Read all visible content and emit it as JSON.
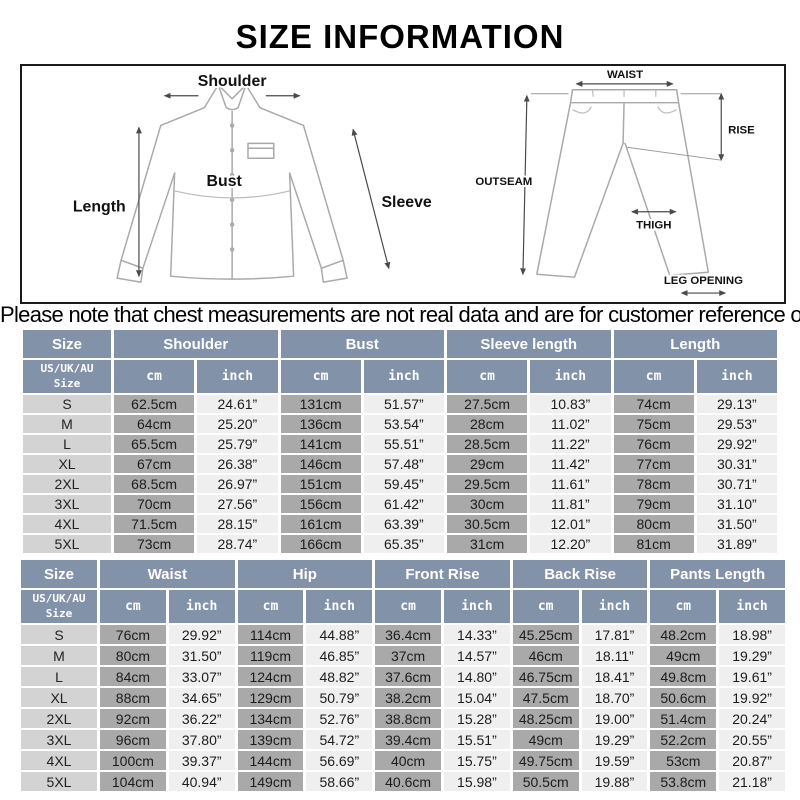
{
  "title": "SIZE INFORMATION",
  "notice": "Please note that chest measurements are not real data and are for customer reference only.",
  "diagram": {
    "shirt": {
      "shoulder": "Shoulder",
      "length": "Length",
      "bust": "Bust",
      "sleeve": "Sleeve"
    },
    "pants": {
      "waist": "WAIST",
      "rise": "RISE",
      "outseam": "OUTSEAM",
      "thigh": "THIGH",
      "leg_opening": "LEG OPENING"
    }
  },
  "colors": {
    "header_bg": "#8292a9",
    "size_col_bg": "#d3d3d3",
    "cm_col_bg": "#a9a9a9",
    "inch_col_bg": "#efefef"
  },
  "tables": [
    {
      "name": "tops",
      "size_header": "Size",
      "size_subheader": "US/UK/AU\nSize",
      "unit_labels": [
        "cm",
        "inch"
      ],
      "groups": [
        "Shoulder",
        "Bust",
        "Sleeve length",
        "Length"
      ],
      "rows": [
        {
          "size": "S",
          "values": [
            "62.5cm",
            "24.61”",
            "131cm",
            "51.57”",
            "27.5cm",
            "10.83”",
            "74cm",
            "29.13”"
          ]
        },
        {
          "size": "M",
          "values": [
            "64cm",
            "25.20”",
            "136cm",
            "53.54”",
            "28cm",
            "11.02”",
            "75cm",
            "29.53”"
          ]
        },
        {
          "size": "L",
          "values": [
            "65.5cm",
            "25.79”",
            "141cm",
            "55.51”",
            "28.5cm",
            "11.22”",
            "76cm",
            "29.92”"
          ]
        },
        {
          "size": "XL",
          "values": [
            "67cm",
            "26.38”",
            "146cm",
            "57.48”",
            "29cm",
            "11.42”",
            "77cm",
            "30.31”"
          ]
        },
        {
          "size": "2XL",
          "values": [
            "68.5cm",
            "26.97”",
            "151cm",
            "59.45”",
            "29.5cm",
            "11.61”",
            "78cm",
            "30.71”"
          ]
        },
        {
          "size": "3XL",
          "values": [
            "70cm",
            "27.56”",
            "156cm",
            "61.42”",
            "30cm",
            "11.81”",
            "79cm",
            "31.10”"
          ]
        },
        {
          "size": "4XL",
          "values": [
            "71.5cm",
            "28.15”",
            "161cm",
            "63.39”",
            "30.5cm",
            "12.01”",
            "80cm",
            "31.50”"
          ]
        },
        {
          "size": "5XL",
          "values": [
            "73cm",
            "28.74”",
            "166cm",
            "65.35”",
            "31cm",
            "12.20”",
            "81cm",
            "31.89”"
          ]
        }
      ]
    },
    {
      "name": "bottoms",
      "size_header": "Size",
      "size_subheader": "US/UK/AU\nSize",
      "unit_labels": [
        "cm",
        "inch"
      ],
      "groups": [
        "Waist",
        "Hip",
        "Front Rise",
        "Back Rise",
        "Pants Length"
      ],
      "rows": [
        {
          "size": "S",
          "values": [
            "76cm",
            "29.92”",
            "114cm",
            "44.88”",
            "36.4cm",
            "14.33”",
            "45.25cm",
            "17.81”",
            "48.2cm",
            "18.98”"
          ]
        },
        {
          "size": "M",
          "values": [
            "80cm",
            "31.50”",
            "119cm",
            "46.85”",
            "37cm",
            "14.57”",
            "46cm",
            "18.11”",
            "49cm",
            "19.29”"
          ]
        },
        {
          "size": "L",
          "values": [
            "84cm",
            "33.07”",
            "124cm",
            "48.82”",
            "37.6cm",
            "14.80”",
            "46.75cm",
            "18.41”",
            "49.8cm",
            "19.61”"
          ]
        },
        {
          "size": "XL",
          "values": [
            "88cm",
            "34.65”",
            "129cm",
            "50.79”",
            "38.2cm",
            "15.04”",
            "47.5cm",
            "18.70”",
            "50.6cm",
            "19.92”"
          ]
        },
        {
          "size": "2XL",
          "values": [
            "92cm",
            "36.22”",
            "134cm",
            "52.76”",
            "38.8cm",
            "15.28”",
            "48.25cm",
            "19.00”",
            "51.4cm",
            "20.24”"
          ]
        },
        {
          "size": "3XL",
          "values": [
            "96cm",
            "37.80”",
            "139cm",
            "54.72”",
            "39.4cm",
            "15.51”",
            "49cm",
            "19.29”",
            "52.2cm",
            "20.55”"
          ]
        },
        {
          "size": "4XL",
          "values": [
            "100cm",
            "39.37”",
            "144cm",
            "56.69”",
            "40cm",
            "15.75”",
            "49.75cm",
            "19.59”",
            "53cm",
            "20.87”"
          ]
        },
        {
          "size": "5XL",
          "values": [
            "104cm",
            "40.94”",
            "149cm",
            "58.66”",
            "40.6cm",
            "15.98”",
            "50.5cm",
            "19.88”",
            "53.8cm",
            "21.18”"
          ]
        }
      ]
    }
  ]
}
